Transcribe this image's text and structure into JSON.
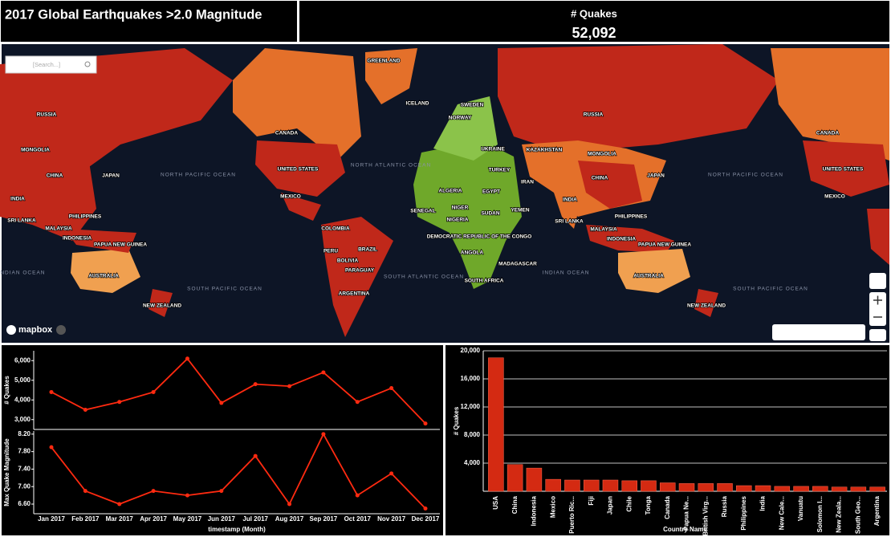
{
  "header": {
    "title": "2017 Global Earthquakes >2.0 Magnitude",
    "kpi_label": "# Quakes",
    "kpi_value": "52,092"
  },
  "map": {
    "search_placeholder": "[Search...]",
    "attribution": "mapbox",
    "labels": [
      "GREENLAND",
      "ICELAND",
      "SWEDEN",
      "NORWAY",
      "RUSSIA",
      "RUSSIA",
      "CANADA",
      "CANADA",
      "UKRAINE",
      "KAZAKHSTAN",
      "MONGOLIA",
      "MONGOLIA",
      "TURKEY",
      "UNITED STATES",
      "UNITED STATES",
      "CHINA",
      "CHINA",
      "JAPAN",
      "JAPAN",
      "NORTH PACIFIC OCEAN",
      "NORTH PACIFIC OCEAN",
      "NORTH ATLANTIC OCEAN",
      "IRAN",
      "MEXICO",
      "MEXICO",
      "INDIA",
      "INDIA",
      "ALGERIA",
      "EGYPT",
      "PHILIPPINES",
      "PHILIPPINES",
      "NIGER",
      "SENEGAL",
      "SUDAN",
      "NIGERIA",
      "YEMEN",
      "SRI LANKA",
      "SRI LANKA",
      "MALAYSIA",
      "MALAYSIA",
      "COLOMBIA",
      "INDONESIA",
      "INDONESIA",
      "PAPUA NEW GUINEA",
      "PAPUA NEW GUINEA",
      "PERU",
      "BRAZIL",
      "BOLIVIA",
      "DEMOCRATIC REPUBLIC OF THE CONGO",
      "ANGOLA",
      "MADAGASCAR",
      "SOUTH AFRICA",
      "SOUTH ATLANTIC OCEAN",
      "INDIAN OCEAN",
      "INDIAN OCEAN",
      "SOUTH PACIFIC OCEAN",
      "SOUTH PACIFIC OCEAN",
      "AUSTRALIA",
      "AUSTRALIA",
      "PARAGUAY",
      "ARGENTINA",
      "NEW ZEALAND",
      "NEW ZEALAND"
    ]
  },
  "chart_data": [
    {
      "type": "line",
      "ylabel": "# Quakes",
      "color": "#ff2a10",
      "values": [
        4400,
        3500,
        3900,
        4400,
        6100,
        3850,
        4800,
        4700,
        5400,
        3900,
        4600,
        2800
      ],
      "ylim": [
        2500,
        6500
      ],
      "yticks": [
        {
          "value": 3000,
          "label": "3,000"
        },
        {
          "value": 4000,
          "label": "4,000"
        },
        {
          "value": 5000,
          "label": "5,000"
        },
        {
          "value": 6000,
          "label": "6,000"
        }
      ]
    },
    {
      "type": "line",
      "ylabel": "Max Quake Magnitude",
      "xlabel": "timestamp (Month)",
      "color": "#ff2a10",
      "categories": [
        "Jan 2017",
        "Feb 2017",
        "Mar 2017",
        "Apr 2017",
        "May 2017",
        "Jun 2017",
        "Jul 2017",
        "Aug 2017",
        "Sep 2017",
        "Oct 2017",
        "Nov 2017",
        "Dec 2017"
      ],
      "values": [
        7.9,
        6.9,
        6.6,
        6.9,
        6.8,
        6.9,
        7.7,
        6.6,
        8.2,
        6.8,
        7.3,
        6.5
      ],
      "ylim": [
        6.38,
        8.27
      ],
      "yticks": [
        {
          "value": 6.6,
          "label": "6.60"
        },
        {
          "value": 7.0,
          "label": "7.00"
        },
        {
          "value": 7.4,
          "label": "7.40"
        },
        {
          "value": 7.8,
          "label": "7.80"
        },
        {
          "value": 8.2,
          "label": "8.20"
        }
      ]
    },
    {
      "type": "bar",
      "ylabel": "# Quakes",
      "xlabel": "Country Name",
      "color": "#d42a12",
      "categories": [
        "USA",
        "China",
        "Indonesia",
        "Mexico",
        "Puerto Ric...",
        "Fiji",
        "Japan",
        "Chile",
        "Tonga",
        "Canada",
        "Papua Ne...",
        "British Virg...",
        "Russia",
        "Philippines",
        "India",
        "New Cale...",
        "Vanuatu",
        "Solomon I...",
        "New Zeala...",
        "South Geo...",
        "Argentina"
      ],
      "values": [
        19000,
        3800,
        3300,
        1700,
        1600,
        1600,
        1600,
        1500,
        1500,
        1200,
        1100,
        1100,
        1100,
        800,
        800,
        700,
        700,
        700,
        600,
        600,
        600
      ],
      "ylim": [
        0,
        20000
      ],
      "yticks": [
        {
          "value": 4000,
          "label": "4,000"
        },
        {
          "value": 8000,
          "label": "8,000"
        },
        {
          "value": 12000,
          "label": "12,000"
        },
        {
          "value": 16000,
          "label": "16,000"
        },
        {
          "value": 20000,
          "label": "20,000"
        }
      ],
      "grid": true
    }
  ]
}
